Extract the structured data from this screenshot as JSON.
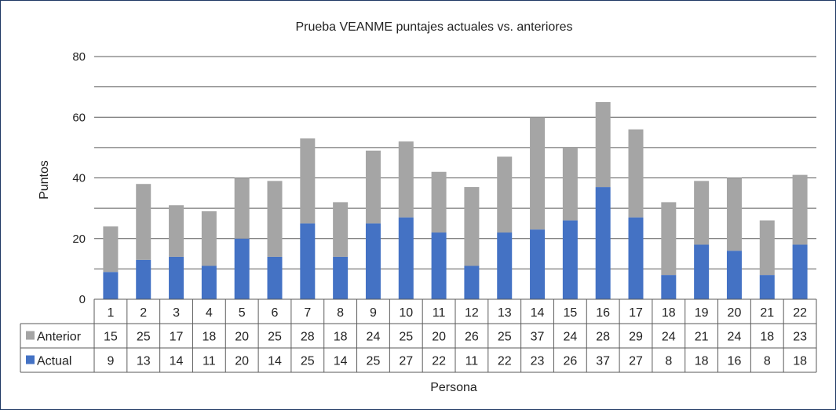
{
  "chart_data": {
    "type": "bar",
    "stacked": true,
    "title": "Prueba VEANME puntajes actuales vs. anteriores",
    "xlabel": "Persona",
    "ylabel": "Puntos",
    "ylim": [
      0,
      80
    ],
    "yticks": [
      0,
      20,
      40,
      60,
      80
    ],
    "grid": true,
    "legend_position": "data-table",
    "categories": [
      "1",
      "2",
      "3",
      "4",
      "5",
      "6",
      "7",
      "8",
      "9",
      "10",
      "11",
      "12",
      "13",
      "14",
      "15",
      "16",
      "17",
      "18",
      "19",
      "20",
      "21",
      "22"
    ],
    "series": [
      {
        "name": "Actual",
        "color": "#4472c4",
        "values": [
          9,
          13,
          14,
          11,
          20,
          14,
          25,
          14,
          25,
          27,
          22,
          11,
          22,
          23,
          26,
          37,
          27,
          8,
          18,
          16,
          8,
          18
        ]
      },
      {
        "name": "Anterior",
        "color": "#a5a5a5",
        "values": [
          15,
          25,
          17,
          18,
          20,
          25,
          28,
          18,
          24,
          25,
          20,
          26,
          25,
          37,
          24,
          28,
          29,
          24,
          21,
          24,
          18,
          23
        ]
      }
    ]
  }
}
